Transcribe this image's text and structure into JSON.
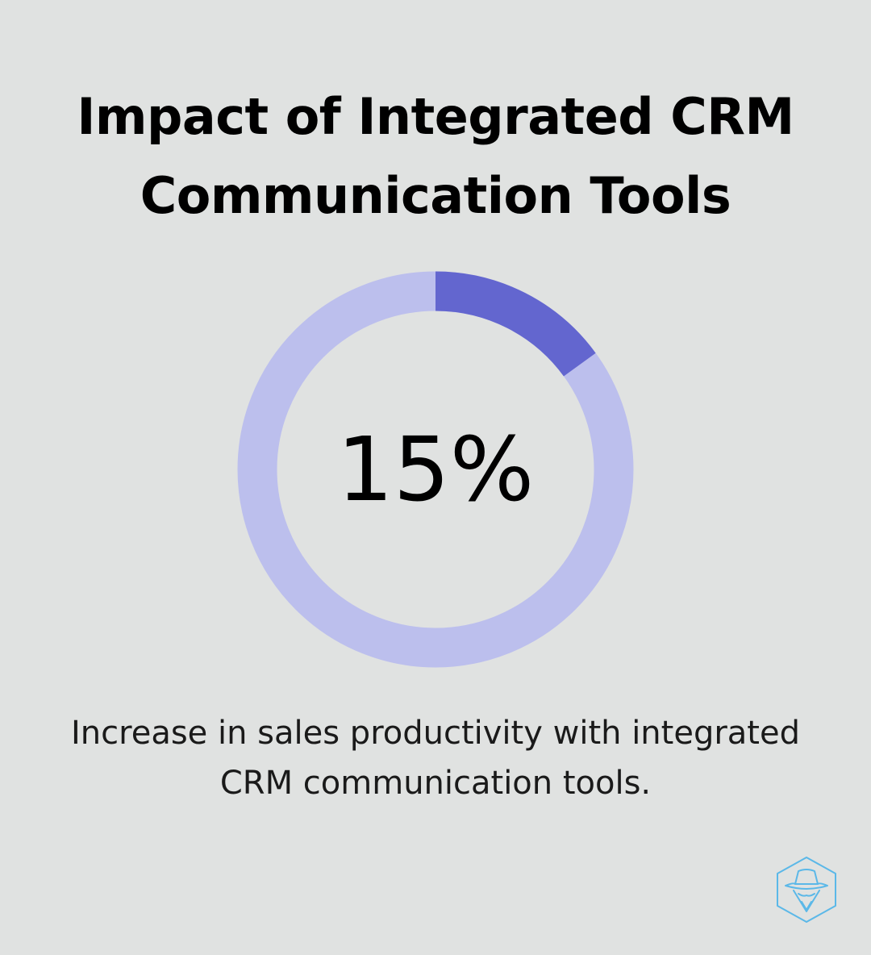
{
  "title": {
    "line1": "Impact of Integrated CRM",
    "line2": "Communication Tools"
  },
  "caption": {
    "line1": "Increase in sales productivity with integrated",
    "line2": "CRM communication tools."
  },
  "colors": {
    "background": "#e0e2e1",
    "filled": "#6366cf",
    "track": "#bcbfed",
    "logo": "#5bb8e8"
  },
  "logo_icon": "detective-hat-icon",
  "chart_data": {
    "type": "pie",
    "variant": "donut",
    "value_label": "15%",
    "slices": [
      {
        "value": 15
      },
      {
        "value": 85
      }
    ]
  }
}
